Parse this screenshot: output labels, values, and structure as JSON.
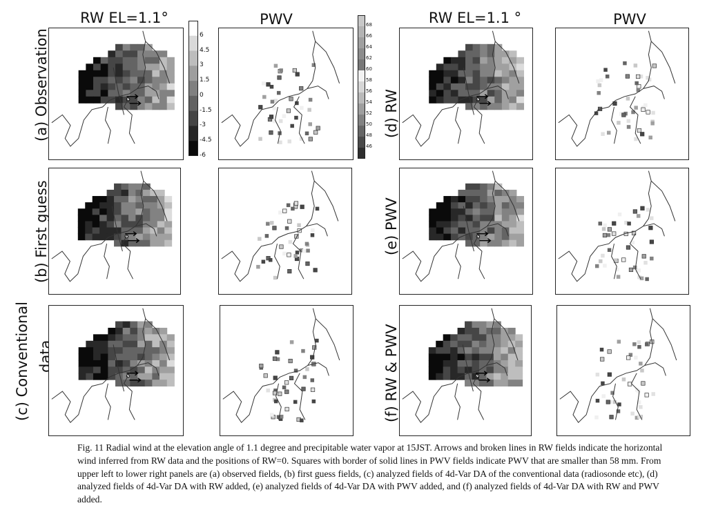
{
  "column_titles": [
    "RW EL=1.1°",
    "PWV",
    "RW EL=1.1 °",
    "PWV"
  ],
  "row_labels": {
    "a": "(a) Observation",
    "b": "(b) First guess",
    "c_line1": "(c) Conventional",
    "c_line2": "data",
    "d": "(d) RW",
    "e": "(e) PWV",
    "f": "(f) RW & PWV"
  },
  "rw_colorbar": {
    "ticks": [
      "6",
      "4.5",
      "3",
      "1.5",
      "0",
      "-1.5",
      "-3",
      "-4.5",
      "-6"
    ],
    "colors": [
      "#ffffff",
      "#d9d9d9",
      "#bdbdbd",
      "#9e9e9e",
      "#808080",
      "#626262",
      "#444444",
      "#262626",
      "#0a0a0a"
    ]
  },
  "pwv_colorbar": {
    "ticks": [
      "68",
      "66",
      "64",
      "62",
      "60",
      "58",
      "56",
      "54",
      "52",
      "50",
      "48",
      "46"
    ],
    "colors": [
      "#c8c8c8",
      "#b4b4b4",
      "#a0a0a0",
      "#8c8c8c",
      "#787878",
      "#f2f2f2",
      "#d6d6d6",
      "#bababa",
      "#9e9e9e",
      "#828282",
      "#666666",
      "#4a4a4a",
      "#2e2e2e"
    ]
  },
  "caption": "Fig. 11 Radial wind at the elevation angle of 1.1 degree and precipitable water vapor at 15JST. Arrows and broken lines in RW fields indicate the horizontal wind inferred from RW data and the positions of RW=0. Squares with border of solid lines in PWV fields indicate PWV that are smaller than 58 mm. From upper left to lower right panels are  (a) observed fields, (b) first guess fields, (c) analyzed fields of 4d-Var DA of the conventional data (radiosonde etc), (d) analyzed fields of 4d-Var DA with RW added, (e) analyzed fields of 4d-Var DA with PWV added, and (f) analyzed fields of 4d-Var DA with RW and PWV added."
}
